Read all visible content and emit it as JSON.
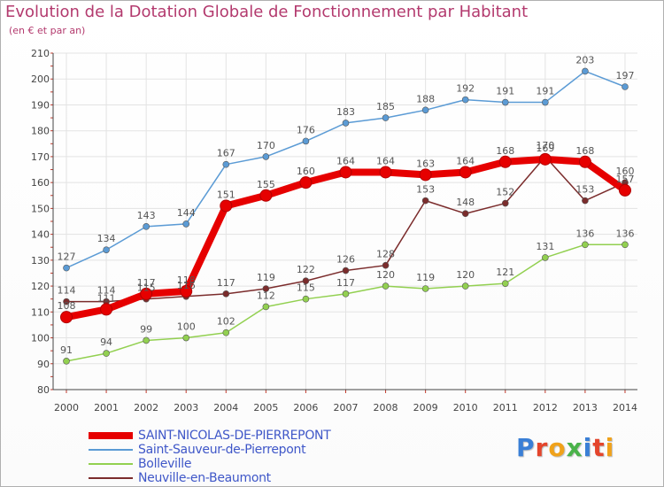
{
  "header": {
    "title": "Evolution de la Dotation Globale de Fonctionnement par Habitant",
    "subtitle": "(en € et par an)"
  },
  "logo": {
    "text": "Proxiti",
    "colors": [
      "#3a7fd6",
      "#e4452c",
      "#f0a21b",
      "#4ab34a",
      "#3a7fd6",
      "#e4452c",
      "#f0a21b"
    ]
  },
  "chart_data": {
    "type": "line",
    "title": "Evolution de la Dotation Globale de Fonctionnement par Habitant",
    "subtitle": "(en € et par an)",
    "xlabel": "",
    "ylabel": "",
    "ylim": [
      80,
      210
    ],
    "yticks": [
      80,
      90,
      100,
      110,
      120,
      130,
      140,
      150,
      160,
      170,
      180,
      190,
      200,
      210
    ],
    "grid": true,
    "legend_position": "bottom-left",
    "x": [
      "2000",
      "2001",
      "2002",
      "2003",
      "2004",
      "2005",
      "2006",
      "2007",
      "2008",
      "2009",
      "2010",
      "2011",
      "2012",
      "2013",
      "2014"
    ],
    "series": [
      {
        "name": "SAINT-NICOLAS-DE-PIERREPONT",
        "color": "#e60000",
        "values": [
          108,
          111,
          117,
          118,
          151,
          155,
          160,
          164,
          164,
          163,
          164,
          168,
          169,
          168,
          157
        ],
        "labels": [
          "108",
          "111",
          "117",
          "118",
          "151",
          "155",
          "160",
          "164",
          "164",
          "163",
          "164",
          "168",
          "169",
          "168",
          "157"
        ]
      },
      {
        "name": "Saint-Sauveur-de-Pierrepont",
        "color": "#5b9bd5",
        "values": [
          127,
          134,
          143,
          144,
          167,
          170,
          176,
          183,
          185,
          188,
          192,
          191,
          191,
          203,
          197
        ],
        "labels": [
          "127",
          "134",
          "143",
          "144",
          "167",
          "170",
          "176",
          "183",
          "185",
          "188",
          "192",
          "191",
          "191",
          "203",
          "197"
        ]
      },
      {
        "name": "Bolleville",
        "color": "#92d050",
        "values": [
          91,
          94,
          99,
          100,
          102,
          112,
          115,
          117,
          120,
          119,
          120,
          121,
          131,
          136,
          136
        ],
        "labels": [
          "91",
          "94",
          "99",
          "100",
          "102",
          "112",
          "115",
          "117",
          "120",
          "119",
          "120",
          "121",
          "131",
          "136",
          "136"
        ]
      },
      {
        "name": "Neuville-en-Beaumont",
        "color": "#7b2c2c",
        "values": [
          114,
          114,
          115,
          116,
          117,
          119,
          122,
          126,
          128,
          153,
          148,
          152,
          170,
          153,
          160
        ],
        "labels": [
          "114",
          "114",
          "115",
          "116",
          "117",
          "119",
          "122",
          "126",
          "128",
          "153",
          "148",
          "152",
          "170",
          "153",
          "160"
        ]
      }
    ]
  }
}
